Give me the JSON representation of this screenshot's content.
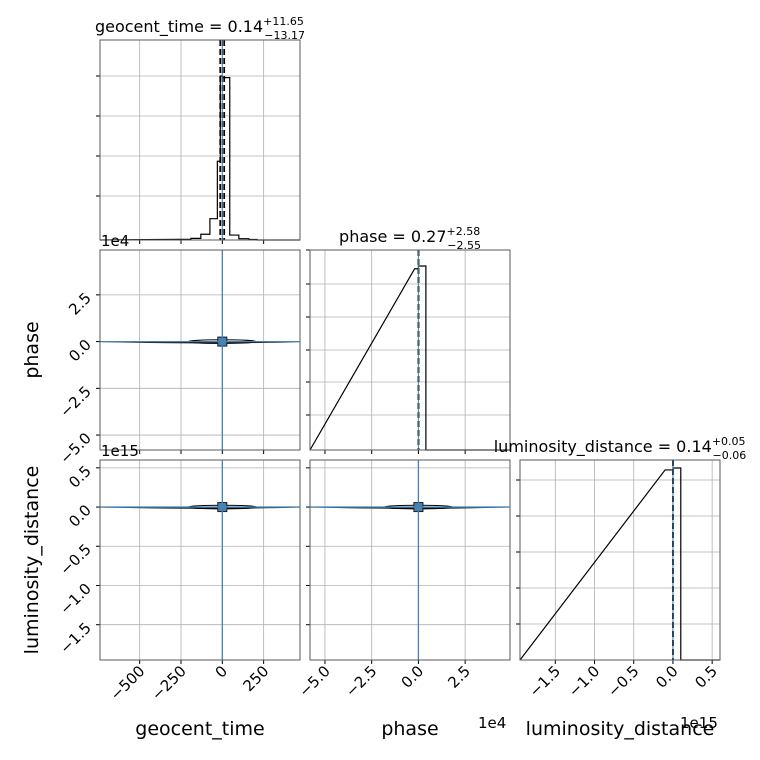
{
  "chart_data": {
    "type": "corner",
    "parameters": [
      "geocent_time",
      "phase",
      "luminosity_distance"
    ],
    "colors": {
      "histogram": "#000000",
      "contours": "#000000",
      "truth": "#4682b4",
      "grid": "#b0b0b0"
    },
    "grid": true,
    "diagonal": [
      {
        "parameter": "geocent_time",
        "title_main": "geocent_time = 0.14",
        "title_upper": "+11.65",
        "title_lower": "−13.17",
        "median": 0.14,
        "err_plus": 11.65,
        "err_minus": 13.17,
        "xlim": [
          -740,
          470
        ],
        "bins": [
          [
            -260,
            -190,
            0.004
          ],
          [
            -190,
            -130,
            0.01
          ],
          [
            -130,
            -75,
            0.035
          ],
          [
            -75,
            -30,
            0.13
          ],
          [
            -30,
            -12,
            0.48
          ],
          [
            -12,
            0,
            1.0
          ],
          [
            0,
            45,
            0.99
          ],
          [
            45,
            100,
            0.03
          ],
          [
            100,
            160,
            0.008
          ],
          [
            160,
            210,
            0.003
          ]
        ],
        "quantiles": [
          -13.03,
          0.14,
          11.79
        ]
      },
      {
        "parameter": "phase",
        "title_main": "phase = 0.27",
        "title_upper": "+2.58",
        "title_lower": "−2.55",
        "median": 0.27,
        "err_plus": 2.58,
        "err_minus": 2.55,
        "xlim": [
          -7.0,
          5.0
        ],
        "bins": [
          [
            -0.2,
            0.0,
            0.985
          ],
          [
            0.0,
            0.4,
            1.0
          ]
        ],
        "quantiles": [
          -0.0002,
          0.0,
          0.0002
        ]
      },
      {
        "parameter": "luminosity_distance",
        "title_main": "luminosity_distance = 0.14",
        "title_upper": "+0.05",
        "title_lower": "−0.06",
        "median": 0.14,
        "err_plus": 0.05,
        "err_minus": 0.06,
        "xlim": [
          -1.95,
          0.55
        ],
        "bins": [
          [
            -0.1,
            0.0,
            0.99
          ],
          [
            0.0,
            0.1,
            1.0
          ]
        ],
        "quantiles": [
          -0.001,
          0.0,
          0.001
        ]
      }
    ],
    "axes": {
      "geocent_time": {
        "ticks": [
          -500,
          -250,
          0,
          250
        ],
        "tick_labels": [
          "−500",
          "−250",
          "0",
          "250"
        ],
        "offset": ""
      },
      "phase": {
        "ticks": [
          -5.0,
          -2.5,
          0.0,
          2.5
        ],
        "tick_labels": [
          "−5.0",
          "−2.5",
          "0.0",
          "2.5"
        ],
        "offset": "1e4",
        "lim": [
          -5.8,
          4.9
        ]
      },
      "luminosity_distance": {
        "ticks": [
          -1.5,
          -1.0,
          -0.5,
          0.0,
          0.5
        ],
        "tick_labels": [
          "−1.5",
          "−1.0",
          "−0.5",
          "0.0",
          "0.5"
        ],
        "offset": "1e15",
        "lim": [
          -1.95,
          0.6
        ]
      }
    },
    "truths": {
      "geocent_time": 0,
      "phase": 0.0,
      "luminosity_distance": 0.0
    },
    "xlabels": [
      "geocent_time",
      "phase",
      "luminosity_distance"
    ],
    "ylabels": [
      "phase",
      "luminosity_distance"
    ]
  }
}
